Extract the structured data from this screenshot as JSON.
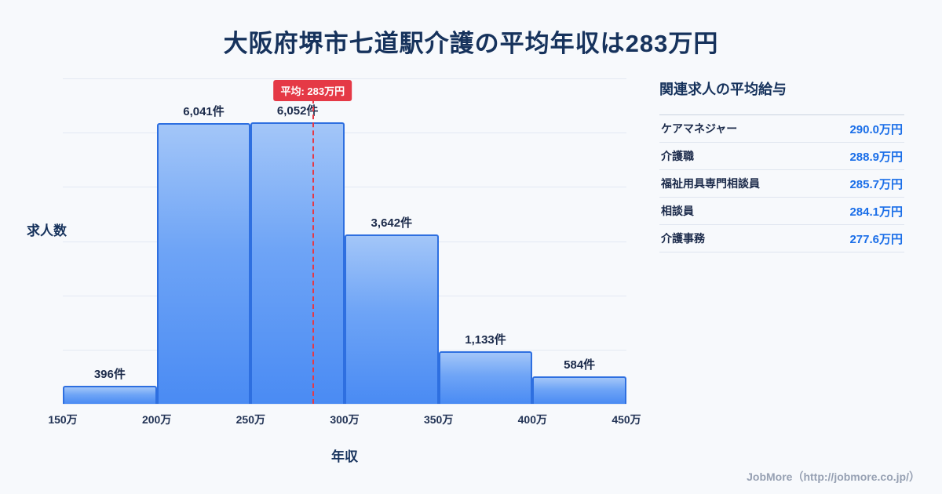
{
  "page": {
    "title": "大阪府堺市七道駅介護の平均年収は283万円",
    "footer": "JobMore（http://jobmore.co.jp/）"
  },
  "chart_data": {
    "type": "bar",
    "title": "大阪府堺市七道駅介護の平均年収は283万円",
    "xlabel": "年収",
    "ylabel": "求人数",
    "x_ticks": [
      "150万",
      "200万",
      "250万",
      "300万",
      "350万",
      "400万",
      "450万"
    ],
    "x_range": [
      150,
      450
    ],
    "values": [
      396,
      6041,
      6052,
      3642,
      1133,
      584
    ],
    "bar_labels": [
      "396件",
      "6,041件",
      "6,052件",
      "3,642件",
      "1,133件",
      "584件"
    ],
    "ylim": [
      0,
      7000
    ],
    "grid": true,
    "legend": "none",
    "average": {
      "value": 283,
      "label": "平均: 283万円"
    },
    "colors": {
      "bar_top": "#a3c6f8",
      "bar_bottom": "#4a8bf3",
      "bar_border": "#2e6fe0",
      "avg_line": "#e53946",
      "title": "#16325c",
      "value_blue": "#1a6ee8"
    }
  },
  "side_panel": {
    "title": "関連求人の平均給与",
    "rows": [
      {
        "label": "ケアマネジャー",
        "value": "290.0万円"
      },
      {
        "label": "介護職",
        "value": "288.9万円"
      },
      {
        "label": "福祉用具専門相談員",
        "value": "285.7万円"
      },
      {
        "label": "相談員",
        "value": "284.1万円"
      },
      {
        "label": "介護事務",
        "value": "277.6万円"
      }
    ]
  }
}
